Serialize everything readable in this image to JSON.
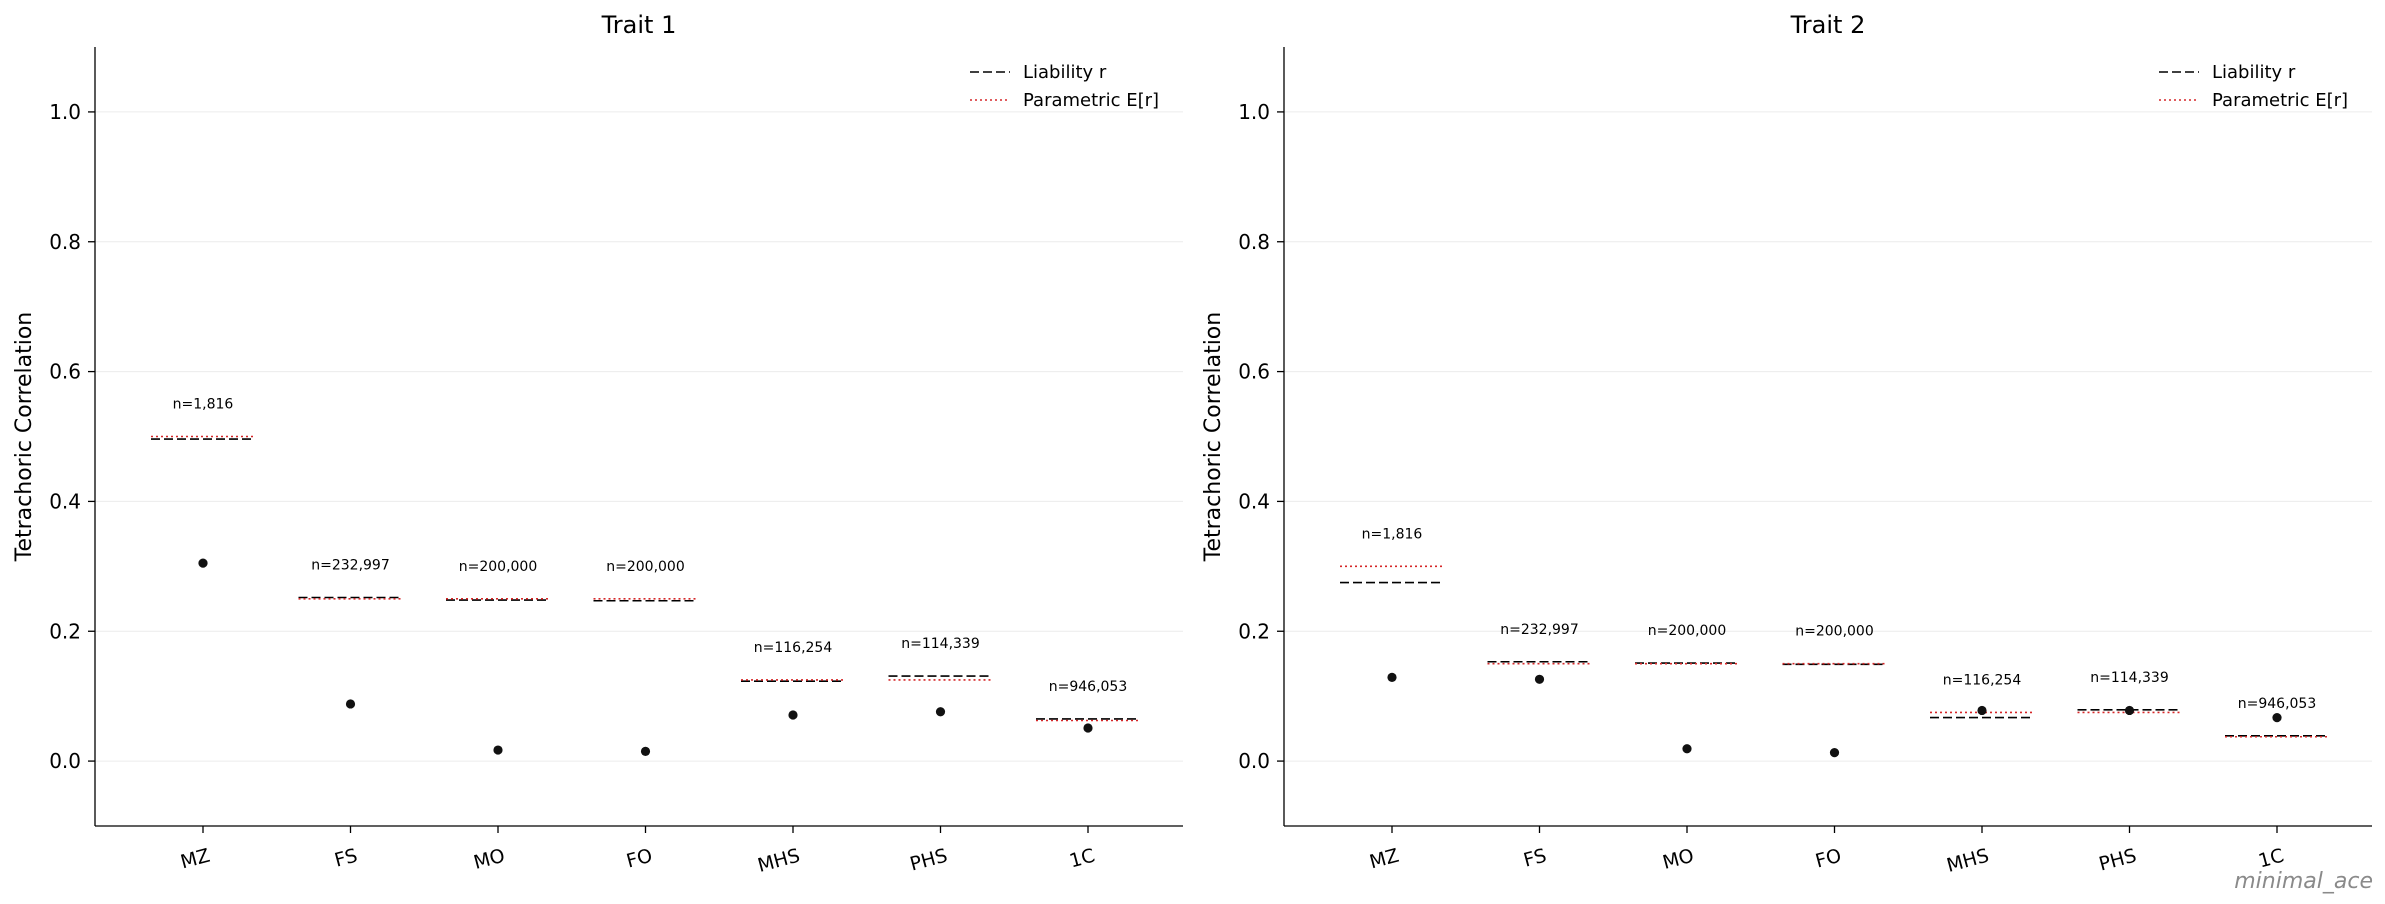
{
  "chart_data": [
    {
      "type": "scatter",
      "title": "Trait 1",
      "ylabel": "Tetrachoric Correlation",
      "xlabel": "",
      "ylim": [
        -0.1,
        1.1
      ],
      "yticks": [
        "0.0",
        "0.2",
        "0.4",
        "0.6",
        "0.8",
        "1.0"
      ],
      "ytick_values": [
        0.0,
        0.2,
        0.4,
        0.6,
        0.8,
        1.0
      ],
      "grid": true,
      "legend_position": "top-right",
      "categories": [
        "MZ",
        "FS",
        "MO",
        "FO",
        "MHS",
        "PHS",
        "1C"
      ],
      "n_labels": [
        "n=1,816",
        "n=232,997",
        "n=200,000",
        "n=200,000",
        "n=116,254",
        "n=114,339",
        "n=946,053"
      ],
      "observed": [
        0.305,
        0.088,
        0.017,
        0.015,
        0.071,
        0.076,
        0.051
      ],
      "series": [
        {
          "name": "Liability r",
          "style": "dashed",
          "color": "#000000",
          "values": [
            0.496,
            0.252,
            0.248,
            0.247,
            0.123,
            0.131,
            0.065
          ]
        },
        {
          "name": "Parametric E[r]",
          "style": "dotted",
          "color": "#d62728",
          "values": [
            0.5,
            0.25,
            0.25,
            0.25,
            0.125,
            0.125,
            0.0625
          ]
        }
      ]
    },
    {
      "type": "scatter",
      "title": "Trait 2",
      "ylabel": "Tetrachoric Correlation",
      "xlabel": "",
      "ylim": [
        -0.1,
        1.1
      ],
      "yticks": [
        "0.0",
        "0.2",
        "0.4",
        "0.6",
        "0.8",
        "1.0"
      ],
      "ytick_values": [
        0.0,
        0.2,
        0.4,
        0.6,
        0.8,
        1.0
      ],
      "grid": true,
      "legend_position": "top-right",
      "categories": [
        "MZ",
        "FS",
        "MO",
        "FO",
        "MHS",
        "PHS",
        "1C"
      ],
      "n_labels": [
        "n=1,816",
        "n=232,997",
        "n=200,000",
        "n=200,000",
        "n=116,254",
        "n=114,339",
        "n=946,053"
      ],
      "observed": [
        0.129,
        0.126,
        0.019,
        0.013,
        0.078,
        0.078,
        0.067
      ],
      "series": [
        {
          "name": "Liability r",
          "style": "dashed",
          "color": "#000000",
          "values": [
            0.275,
            0.153,
            0.151,
            0.149,
            0.067,
            0.079,
            0.039
          ]
        },
        {
          "name": "Parametric E[r]",
          "style": "dotted",
          "color": "#d62728",
          "values": [
            0.3,
            0.15,
            0.15,
            0.15,
            0.075,
            0.075,
            0.0375
          ]
        }
      ]
    }
  ],
  "footer": {
    "watermark": "minimal_ace"
  }
}
